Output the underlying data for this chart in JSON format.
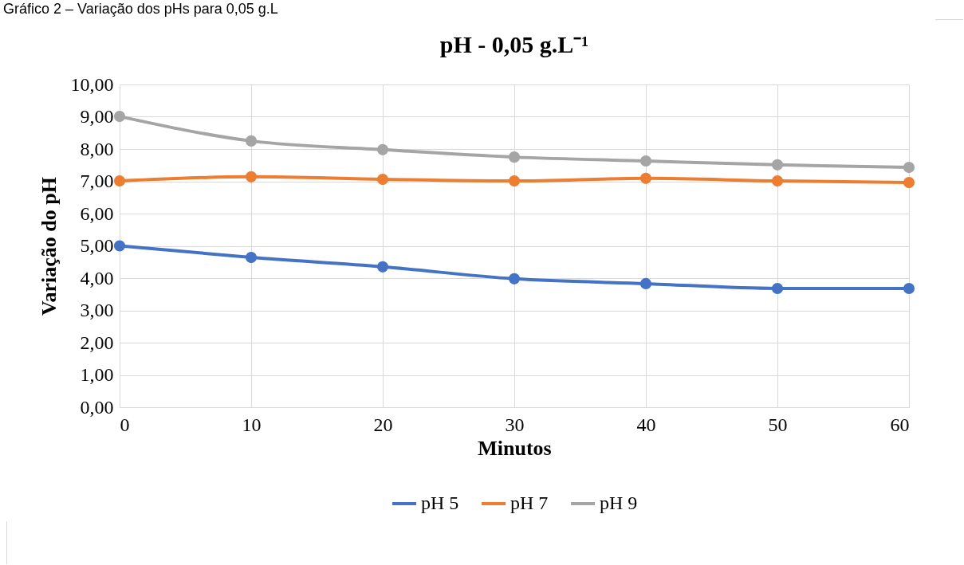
{
  "chart_data": {
    "type": "line",
    "title": "pH - 0,05 g.L⁻¹",
    "xlabel": "Minutos",
    "ylabel": "Variação do pH",
    "annotations": [
      "Gráfico 2 – Variação dos pHs para 0,05 g.L"
    ],
    "x": [
      0,
      10,
      20,
      30,
      40,
      50,
      60
    ],
    "series": [
      {
        "name": "pH 5",
        "color": "#4472c4",
        "values": [
          5.0,
          4.64,
          4.35,
          3.98,
          3.83,
          3.68,
          3.68
        ]
      },
      {
        "name": "pH 7",
        "color": "#ed7d31",
        "values": [
          7.01,
          7.14,
          7.06,
          7.01,
          7.09,
          7.01,
          6.96
        ]
      },
      {
        "name": "pH 9",
        "color": "#a5a5a5",
        "values": [
          9.01,
          8.25,
          7.98,
          7.75,
          7.63,
          7.51,
          7.43
        ]
      }
    ],
    "xlim": [
      0,
      60
    ],
    "xticks": [
      0,
      10,
      20,
      30,
      40,
      50,
      60
    ],
    "ylim": [
      0,
      10
    ],
    "yticks": [
      {
        "value": 0,
        "label": "0,00"
      },
      {
        "value": 1,
        "label": "1,00"
      },
      {
        "value": 2,
        "label": "2,00"
      },
      {
        "value": 3,
        "label": "3,00"
      },
      {
        "value": 4,
        "label": "4,00"
      },
      {
        "value": 5,
        "label": "5,00"
      },
      {
        "value": 6,
        "label": "6,00"
      },
      {
        "value": 7,
        "label": "7,00"
      },
      {
        "value": 8,
        "label": "8,00"
      },
      {
        "value": 9,
        "label": "9,00"
      },
      {
        "value": 10,
        "label": "10,00"
      }
    ],
    "grid": true,
    "legend": "bottom",
    "marker": "circle",
    "line_style": "solid"
  }
}
